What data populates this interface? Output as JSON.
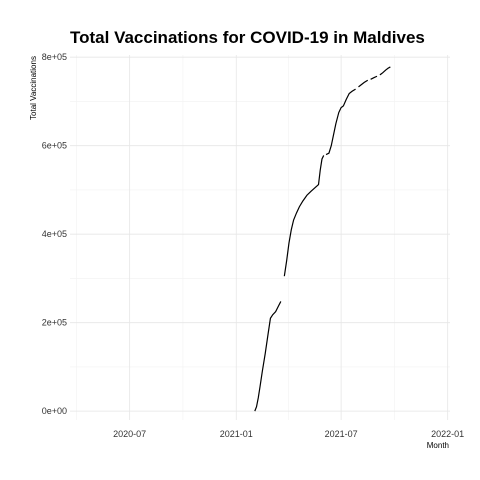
{
  "chart_data": {
    "type": "line",
    "title": "Total Vaccinations for COVID-19 in Maldives",
    "xlabel": "Month",
    "ylabel": "Total Vaccinations",
    "x_ticks": [
      {
        "value": "2020-07-01",
        "label": "2020-07"
      },
      {
        "value": "2021-01-01",
        "label": "2021-01"
      },
      {
        "value": "2021-07-01",
        "label": "2021-07"
      },
      {
        "value": "2022-01-01",
        "label": "2022-01"
      }
    ],
    "y_ticks": [
      {
        "value": 0,
        "label": "0e+00"
      },
      {
        "value": 200000,
        "label": "2e+05"
      },
      {
        "value": 400000,
        "label": "4e+05"
      },
      {
        "value": 600000,
        "label": "6e+05"
      },
      {
        "value": 800000,
        "label": "8e+05"
      }
    ],
    "xlim": [
      "2020-03-20",
      "2022-01-05"
    ],
    "ylim": [
      -20000,
      805000
    ],
    "grid": true,
    "series": [
      {
        "segments": [
          [
            [
              "2021-02-02",
              0
            ],
            [
              "2021-02-05",
              10000
            ],
            [
              "2021-02-08",
              30000
            ],
            [
              "2021-02-11",
              55000
            ],
            [
              "2021-02-15",
              90000
            ],
            [
              "2021-02-20",
              130000
            ],
            [
              "2021-02-25",
              175000
            ],
            [
              "2021-03-01",
              210000
            ],
            [
              "2021-03-05",
              218000
            ],
            [
              "2021-03-10",
              225000
            ],
            [
              "2021-03-15",
              238000
            ],
            [
              "2021-03-19",
              248000
            ]
          ],
          [
            [
              "2021-03-25",
              305000
            ],
            [
              "2021-03-29",
              340000
            ],
            [
              "2021-04-02",
              380000
            ],
            [
              "2021-04-06",
              410000
            ],
            [
              "2021-04-10",
              432000
            ],
            [
              "2021-04-15",
              448000
            ],
            [
              "2021-04-20",
              462000
            ],
            [
              "2021-04-26",
              475000
            ],
            [
              "2021-05-03",
              488000
            ],
            [
              "2021-05-10",
              497000
            ],
            [
              "2021-05-17",
              505000
            ],
            [
              "2021-05-23",
              512000
            ],
            [
              "2021-05-26",
              545000
            ],
            [
              "2021-05-29",
              570000
            ],
            [
              "2021-06-01",
              578000
            ]
          ],
          [
            [
              "2021-06-05",
              580000
            ],
            [
              "2021-06-10",
              583000
            ],
            [
              "2021-06-14",
              600000
            ],
            [
              "2021-06-18",
              625000
            ],
            [
              "2021-06-22",
              650000
            ],
            [
              "2021-06-27",
              675000
            ],
            [
              "2021-07-01",
              686000
            ],
            [
              "2021-07-05",
              690000
            ],
            [
              "2021-07-10",
              705000
            ],
            [
              "2021-07-15",
              718000
            ],
            [
              "2021-07-20",
              723000
            ],
            [
              "2021-07-26",
              728000
            ]
          ],
          [
            [
              "2021-07-31",
              733000
            ],
            [
              "2021-08-05",
              738000
            ],
            [
              "2021-08-10",
              743000
            ],
            [
              "2021-08-16",
              748000
            ]
          ],
          [
            [
              "2021-08-21",
              750000
            ],
            [
              "2021-08-27",
              754000
            ],
            [
              "2021-09-01",
              757000
            ]
          ],
          [
            [
              "2021-09-06",
              760000
            ],
            [
              "2021-09-11",
              765000
            ],
            [
              "2021-09-16",
              771000
            ],
            [
              "2021-09-20",
              775000
            ],
            [
              "2021-09-24",
              778000
            ]
          ]
        ]
      }
    ]
  }
}
